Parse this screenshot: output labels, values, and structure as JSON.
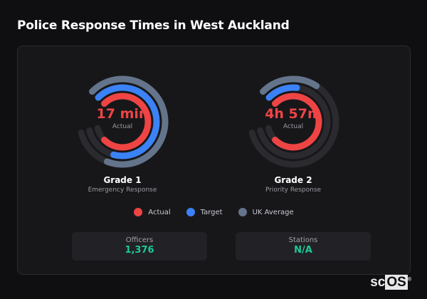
{
  "title": "Police Response Times in West Auckland",
  "colors": {
    "actual": "#ef4444",
    "target": "#3b82f6",
    "uk_average": "#64748b",
    "track": "#2a2a2f",
    "stat_value": "#1ec99a"
  },
  "gauges": [
    {
      "value": "17 min",
      "value_label": "Actual",
      "name": "Grade 1",
      "description": "Emergency Response",
      "fill": {
        "actual": 0.9,
        "target": 0.8,
        "uk_average": 0.82
      }
    },
    {
      "value": "4h 57m",
      "value_label": "Actual",
      "name": "Grade 2",
      "description": "Priority Response",
      "fill": {
        "actual": 0.9,
        "target": 0.17,
        "uk_average": 0.26
      }
    }
  ],
  "legend": [
    "Actual",
    "Target",
    "UK Average"
  ],
  "stats": [
    {
      "label": "Officers",
      "value": "1,376"
    },
    {
      "label": "Stations",
      "value": "N/A"
    }
  ],
  "logo": {
    "text_a": "sc",
    "text_b": "OS",
    "mark": "®"
  }
}
